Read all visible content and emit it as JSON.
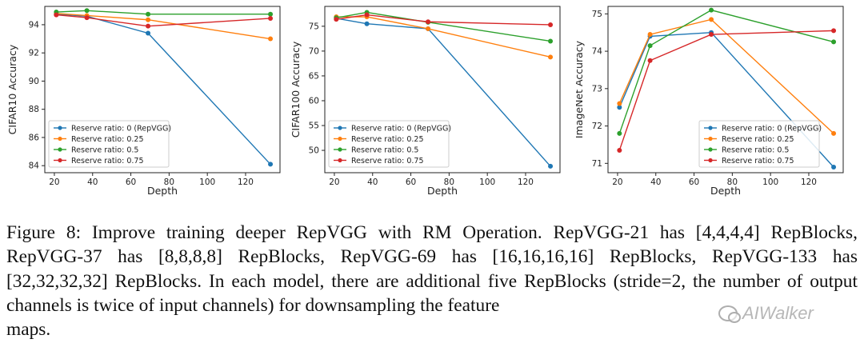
{
  "chart_data": [
    {
      "type": "line",
      "xlabel": "Depth",
      "ylabel": "CIFAR10 Accuracy",
      "x": [
        21,
        37,
        69,
        133
      ],
      "xlim": [
        15,
        138
      ],
      "ylim": [
        83.5,
        95.3
      ],
      "xticks": [
        20,
        40,
        60,
        80,
        100,
        120
      ],
      "yticks": [
        84,
        86,
        88,
        90,
        92,
        94
      ],
      "legend_position": "lower-left",
      "grid": false,
      "series": [
        {
          "name": "Reserve ratio: 0 (RepVGG)",
          "color": "#1f77b4",
          "values": [
            94.75,
            94.6,
            93.4,
            84.1
          ]
        },
        {
          "name": "Reserve ratio: 0.25",
          "color": "#ff7f0e",
          "values": [
            94.8,
            94.65,
            94.35,
            93.0
          ]
        },
        {
          "name": "Reserve ratio: 0.5",
          "color": "#2ca02c",
          "values": [
            94.9,
            95.0,
            94.75,
            94.75
          ]
        },
        {
          "name": "Reserve ratio: 0.75",
          "color": "#d62728",
          "values": [
            94.7,
            94.5,
            93.9,
            94.45
          ]
        }
      ]
    },
    {
      "type": "line",
      "xlabel": "Depth",
      "ylabel": "CIFAR100 Accuracy",
      "x": [
        21,
        37,
        69,
        133
      ],
      "xlim": [
        15,
        138
      ],
      "ylim": [
        45.5,
        79
      ],
      "xticks": [
        20,
        40,
        60,
        80,
        100,
        120
      ],
      "yticks": [
        50,
        55,
        60,
        65,
        70,
        75
      ],
      "legend_position": "lower-left",
      "grid": false,
      "series": [
        {
          "name": "Reserve ratio: 0 (RepVGG)",
          "color": "#1f77b4",
          "values": [
            76.6,
            75.5,
            74.5,
            46.8
          ]
        },
        {
          "name": "Reserve ratio: 0.25",
          "color": "#ff7f0e",
          "values": [
            76.9,
            76.9,
            74.5,
            68.8
          ]
        },
        {
          "name": "Reserve ratio: 0.5",
          "color": "#2ca02c",
          "values": [
            76.7,
            77.8,
            75.8,
            72.0
          ]
        },
        {
          "name": "Reserve ratio: 0.75",
          "color": "#d62728",
          "values": [
            76.4,
            77.3,
            75.9,
            75.3
          ]
        }
      ]
    },
    {
      "type": "line",
      "xlabel": "Depth",
      "ylabel": "ImageNet Accuracy",
      "x": [
        21,
        37,
        69,
        133
      ],
      "xlim": [
        15,
        138
      ],
      "ylim": [
        70.75,
        75.2
      ],
      "xticks": [
        20,
        40,
        60,
        80,
        100,
        120
      ],
      "yticks": [
        71,
        72,
        73,
        74,
        75
      ],
      "legend_position": "lower-right",
      "grid": false,
      "series": [
        {
          "name": "Reserve ratio: 0 (RepVGG)",
          "color": "#1f77b4",
          "values": [
            72.5,
            74.4,
            74.5,
            70.9
          ]
        },
        {
          "name": "Reserve ratio: 0.25",
          "color": "#ff7f0e",
          "values": [
            72.6,
            74.45,
            74.85,
            71.8
          ]
        },
        {
          "name": "Reserve ratio: 0.5",
          "color": "#2ca02c",
          "values": [
            71.8,
            74.15,
            75.1,
            74.25
          ]
        },
        {
          "name": "Reserve ratio: 0.75",
          "color": "#d62728",
          "values": [
            71.35,
            73.75,
            74.45,
            74.55
          ]
        }
      ]
    }
  ],
  "caption": {
    "body": "Figure 8:  Improve training deeper RepVGG with RM Operation.  RepVGG-21 has [4,4,4,4] RepBlocks, RepVGG-37 has [8,8,8,8] RepBlocks, RepVGG-69 has [16,16,16,16] RepBlocks, RepVGG-133 has [32,32,32,32] RepBlocks.  In each model, there are additional five RepBlocks (stride=2, the number of output channels is twice of input channels) for downsampling the feature",
    "last_line": "maps."
  },
  "watermark": {
    "text": "AIWalker"
  }
}
